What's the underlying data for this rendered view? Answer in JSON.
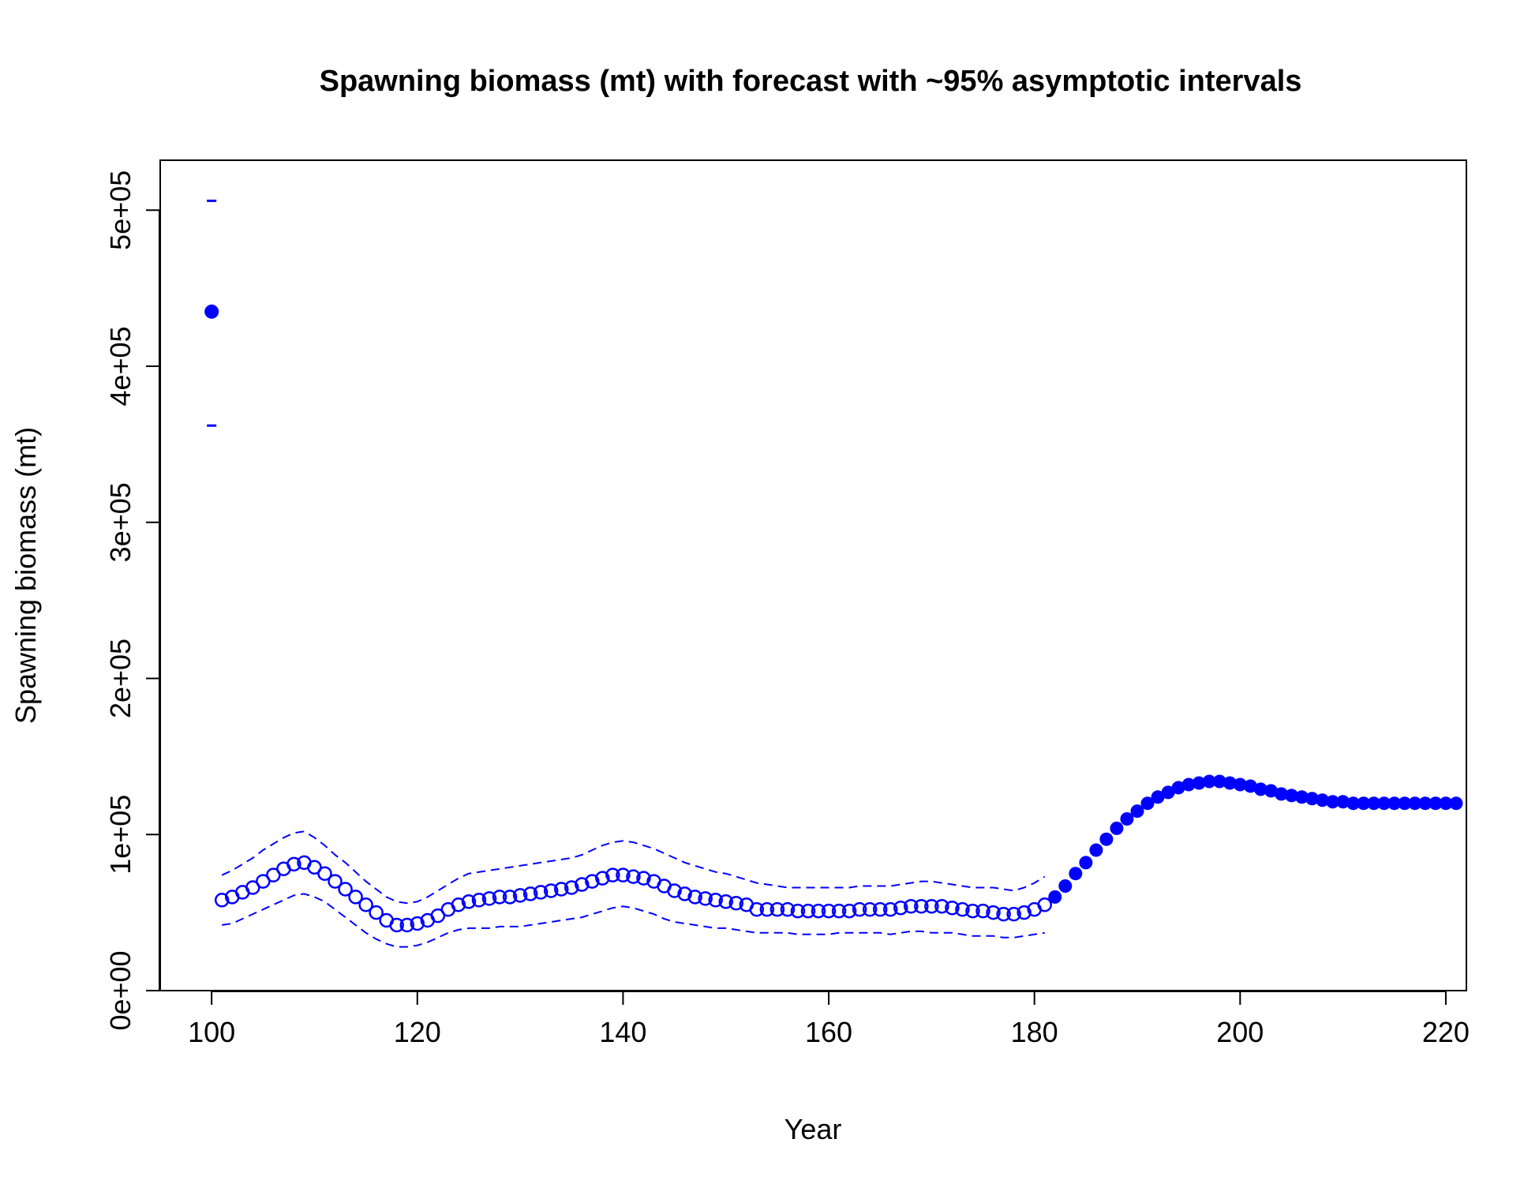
{
  "chart_data": {
    "type": "scatter",
    "title": "Spawning biomass (mt) with forecast with ~95% asymptotic intervals",
    "xlabel": "Year",
    "ylabel": "Spawning biomass (mt)",
    "xlim": [
      95,
      222
    ],
    "ylim": [
      0,
      532000
    ],
    "x_ticks": [
      100,
      120,
      140,
      160,
      180,
      200,
      220
    ],
    "x_tick_labels": [
      "100",
      "120",
      "140",
      "160",
      "180",
      "200",
      "220"
    ],
    "y_ticks": [
      0,
      100000,
      200000,
      300000,
      400000,
      500000
    ],
    "y_tick_labels": [
      "0e+00",
      "1e+05",
      "2e+05",
      "3e+05",
      "4e+05",
      "5e+05"
    ],
    "grid": false,
    "colors": {
      "series": "#0000ff",
      "axis": "#000000"
    },
    "virgin": {
      "x": 100,
      "y": 435000,
      "lower": 362000,
      "upper": 506000
    },
    "estimated": {
      "x": [
        101,
        102,
        103,
        104,
        105,
        106,
        107,
        108,
        109,
        110,
        111,
        112,
        113,
        114,
        115,
        116,
        117,
        118,
        119,
        120,
        121,
        122,
        123,
        124,
        125,
        126,
        127,
        128,
        129,
        130,
        131,
        132,
        133,
        134,
        135,
        136,
        137,
        138,
        139,
        140,
        141,
        142,
        143,
        144,
        145,
        146,
        147,
        148,
        149,
        150,
        151,
        152,
        153,
        154,
        155,
        156,
        157,
        158,
        159,
        160,
        161,
        162,
        163,
        164,
        165,
        166,
        167,
        168,
        169,
        170,
        171,
        172,
        173,
        174,
        175,
        176,
        177,
        178,
        179,
        180,
        181
      ],
      "y": [
        58000,
        60000,
        63000,
        66000,
        70000,
        74000,
        78000,
        81000,
        82000,
        79000,
        75000,
        70000,
        65000,
        60000,
        55000,
        50000,
        45000,
        42000,
        42000,
        43000,
        45000,
        48000,
        52000,
        55000,
        57000,
        58000,
        59000,
        60000,
        60000,
        61000,
        62000,
        63000,
        64000,
        65000,
        66000,
        68000,
        70000,
        72000,
        74000,
        74000,
        73000,
        72000,
        70000,
        67000,
        64000,
        62000,
        60000,
        59000,
        58000,
        57000,
        56000,
        55000,
        52000,
        52000,
        52000,
        52000,
        51000,
        51000,
        51000,
        51000,
        51000,
        51000,
        52000,
        52000,
        52000,
        52000,
        53000,
        54000,
        54000,
        54000,
        54000,
        53000,
        52000,
        51000,
        51000,
        50000,
        49000,
        49000,
        50000,
        52000,
        55000
      ],
      "lower": [
        42000,
        43000,
        46000,
        49000,
        52000,
        55000,
        58000,
        61000,
        62000,
        60000,
        57000,
        52000,
        47000,
        42000,
        37000,
        33000,
        30000,
        28000,
        28000,
        29000,
        31000,
        34000,
        37000,
        39000,
        40000,
        40000,
        40000,
        41000,
        41000,
        41000,
        42000,
        43000,
        44000,
        45000,
        46000,
        47000,
        49000,
        51000,
        53000,
        54000,
        53000,
        51000,
        49000,
        46000,
        44000,
        43000,
        42000,
        41000,
        40000,
        40000,
        39000,
        38000,
        37000,
        37000,
        37000,
        37000,
        36000,
        36000,
        36000,
        36000,
        37000,
        37000,
        37000,
        37000,
        37000,
        36000,
        37000,
        38000,
        38000,
        37000,
        37000,
        37000,
        36000,
        35000,
        35000,
        35000,
        34000,
        34000,
        35000,
        36000,
        37000
      ],
      "upper": [
        74000,
        77000,
        81000,
        85000,
        90000,
        94000,
        98000,
        101000,
        102000,
        98000,
        93000,
        87000,
        82000,
        76000,
        70000,
        65000,
        60000,
        57000,
        56000,
        57000,
        60000,
        64000,
        68000,
        72000,
        75000,
        76000,
        77000,
        78000,
        79000,
        80000,
        81000,
        82000,
        83000,
        84000,
        85000,
        87000,
        90000,
        93000,
        95000,
        96000,
        95000,
        93000,
        91000,
        88000,
        85000,
        82000,
        80000,
        78000,
        76000,
        75000,
        73000,
        71000,
        69000,
        68000,
        67000,
        66000,
        66000,
        66000,
        66000,
        66000,
        66000,
        66000,
        67000,
        67000,
        67000,
        67000,
        68000,
        69000,
        70000,
        70000,
        69000,
        68000,
        67000,
        66000,
        66000,
        66000,
        65000,
        64000,
        66000,
        69000,
        73000
      ]
    },
    "forecast": {
      "x": [
        182,
        183,
        184,
        185,
        186,
        187,
        188,
        189,
        190,
        191,
        192,
        193,
        194,
        195,
        196,
        197,
        198,
        199,
        200,
        201,
        202,
        203,
        204,
        205,
        206,
        207,
        208,
        209,
        210,
        211,
        212,
        213,
        214,
        215,
        216,
        217,
        218,
        219,
        220,
        221
      ],
      "y": [
        60000,
        67000,
        75000,
        82000,
        90000,
        97000,
        104000,
        110000,
        115000,
        120000,
        124000,
        127000,
        130000,
        132000,
        133000,
        134000,
        134000,
        133000,
        132000,
        131000,
        129000,
        128000,
        126000,
        125000,
        124000,
        123000,
        122000,
        121000,
        121000,
        120000,
        120000,
        120000,
        120000,
        120000,
        120000,
        120000,
        120000,
        120000,
        120000,
        120000
      ]
    }
  }
}
